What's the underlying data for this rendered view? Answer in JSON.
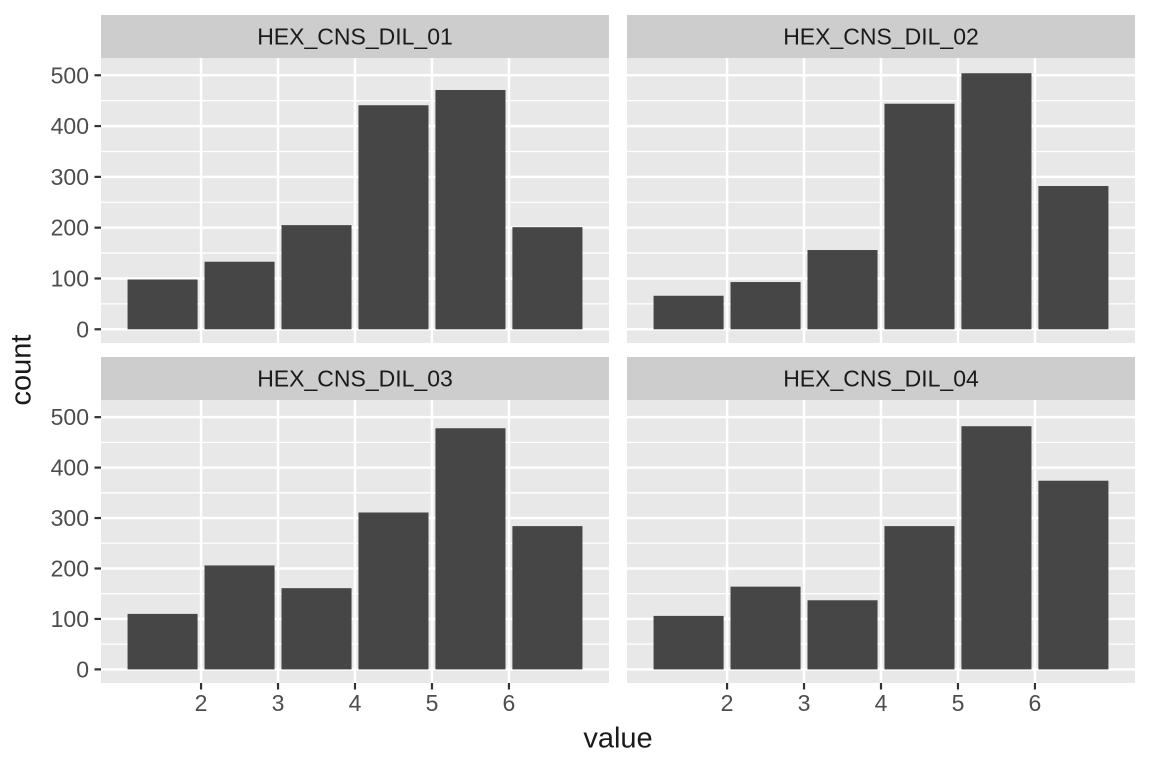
{
  "figure": {
    "background": "#FFFFFF"
  },
  "style": {
    "panel_background": "#E8E8E8",
    "strip_background": "#CDCDCD",
    "strip_text_color": "#1A1A1A",
    "bar_fill": "#464646",
    "grid_color": "#FFFFFF",
    "tick_mark_color": "#333333",
    "tick_label_color": "#4D4D4D",
    "axis_title_color": "#1A1A1A"
  },
  "chart_data": {
    "type": "bar",
    "subtype": "faceted-histogram",
    "facet_layout": "2x2",
    "xlabel": "value",
    "ylabel": "count",
    "x_breaks": [
      2,
      3,
      4,
      5,
      6
    ],
    "y_breaks": [
      0,
      100,
      200,
      300,
      400,
      500
    ],
    "y_minor_breaks": [
      50,
      150,
      250,
      350,
      450
    ],
    "xlim": [
      0.7,
      7.3
    ],
    "ylim": [
      0,
      504
    ],
    "bin_centers": [
      1.5,
      2.5,
      3.5,
      4.5,
      5.5,
      6.5
    ],
    "bar_width": 0.91,
    "grid": true,
    "legend": "none",
    "facets": [
      {
        "label": "HEX_CNS_DIL_01",
        "values": [
          98,
          133,
          205,
          441,
          471,
          201
        ]
      },
      {
        "label": "HEX_CNS_DIL_02",
        "values": [
          66,
          93,
          156,
          444,
          504,
          282
        ]
      },
      {
        "label": "HEX_CNS_DIL_03",
        "values": [
          110,
          206,
          161,
          311,
          478,
          284
        ]
      },
      {
        "label": "HEX_CNS_DIL_04",
        "values": [
          106,
          164,
          137,
          284,
          482,
          374
        ]
      }
    ]
  }
}
